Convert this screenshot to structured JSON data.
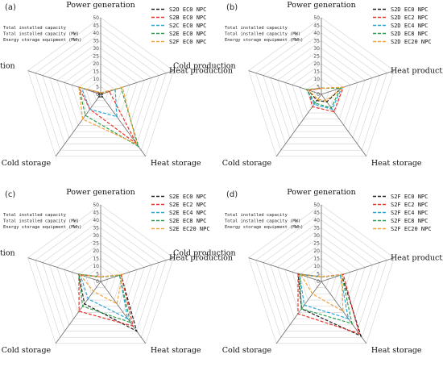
{
  "chart_data": [
    {
      "type": "radar",
      "panel": "(a)",
      "axes": [
        "Power generation",
        "Heat production",
        "Heat storage",
        "Cold storage",
        "Cold production"
      ],
      "rlim": [
        0,
        50
      ],
      "ticks": [
        0,
        5,
        10,
        15,
        20,
        25,
        30,
        35,
        40,
        45,
        50
      ],
      "notes": [
        "Total installed capacity",
        "Total installed capacity (MW)",
        "Energy storage equipment (MWh)"
      ],
      "grid": true,
      "legend_position": "top-right",
      "series": [
        {
          "name": "S2O EC0 NPC",
          "color": "#222222",
          "values": [
            1,
            1,
            2,
            2,
            1
          ]
        },
        {
          "name": "S2B EC0 NPC",
          "color": "#e8332a",
          "values": [
            1,
            6,
            40,
            12,
            15
          ]
        },
        {
          "name": "S2C EC0 NPC",
          "color": "#2aa6d6",
          "values": [
            1,
            10,
            18,
            12,
            13
          ]
        },
        {
          "name": "S2E EC0 NPC",
          "color": "#2e9e4f",
          "values": [
            1,
            14,
            42,
            17,
            15
          ]
        },
        {
          "name": "S2F EC0 NPC",
          "color": "#f2a33a",
          "values": [
            1,
            15,
            40,
            20,
            15
          ]
        }
      ]
    },
    {
      "type": "radar",
      "panel": "(b)",
      "axes": [
        "Power generation",
        "Heat production",
        "Heat storage",
        "Cold storage",
        "Cold production"
      ],
      "rlim": [
        0,
        50
      ],
      "ticks": [
        0,
        5,
        10,
        15,
        20,
        25,
        30,
        35,
        40,
        45,
        50
      ],
      "notes": [
        "Total installed capacity",
        "Total installed capacity (MW)",
        "Energy storage equipment (MWh)"
      ],
      "grid": true,
      "legend_position": "top-right",
      "series": [
        {
          "name": "S2D EC0 NPC",
          "color": "#222222",
          "values": [
            4,
            14,
            6,
            5,
            9
          ]
        },
        {
          "name": "S2D EC2 NPC",
          "color": "#e8332a",
          "values": [
            4,
            15,
            14,
            10,
            9
          ]
        },
        {
          "name": "S2D EC4 NPC",
          "color": "#2aa6d6",
          "values": [
            4,
            14,
            12,
            8,
            10
          ]
        },
        {
          "name": "S2D EC8 NPC",
          "color": "#2e9e4f",
          "values": [
            4,
            13,
            11,
            7,
            10
          ]
        },
        {
          "name": "S2D EC20 NPC",
          "color": "#f2a33a",
          "values": [
            4,
            15,
            5,
            4,
            9
          ]
        }
      ]
    },
    {
      "type": "radar",
      "panel": "(c)",
      "axes": [
        "Power generation",
        "Heat production",
        "Heat storage",
        "Cold storage",
        "Cold production"
      ],
      "rlim": [
        0,
        50
      ],
      "ticks": [
        0,
        5,
        10,
        15,
        20,
        25,
        30,
        35,
        40,
        45,
        50
      ],
      "notes": [
        "Total installed capacity",
        "Total installed capacity (MW)",
        "Energy storage equipment (MWh)"
      ],
      "grid": true,
      "legend_position": "top-right",
      "series": [
        {
          "name": "S2E EC0 NPC",
          "color": "#222222",
          "values": [
            3,
            14,
            40,
            18,
            15
          ]
        },
        {
          "name": "S2E EC2 NPC",
          "color": "#e8332a",
          "values": [
            3,
            14,
            36,
            24,
            15
          ]
        },
        {
          "name": "S2E EC4 NPC",
          "color": "#2aa6d6",
          "values": [
            3,
            13,
            30,
            14,
            14
          ]
        },
        {
          "name": "S2E EC8 NPC",
          "color": "#2e9e4f",
          "values": [
            3,
            13,
            33,
            20,
            15
          ]
        },
        {
          "name": "S2E EC20 NPC",
          "color": "#f2a33a",
          "values": [
            3,
            15,
            18,
            8,
            14
          ]
        }
      ]
    },
    {
      "type": "radar",
      "panel": "(d)",
      "axes": [
        "Power generation",
        "Heat production",
        "Heat storage",
        "Cold storage",
        "Cold production"
      ],
      "rlim": [
        0,
        50
      ],
      "ticks": [
        0,
        5,
        10,
        15,
        20,
        25,
        30,
        35,
        40,
        45,
        50
      ],
      "notes": [
        "Total installed capacity",
        "Total installed capacity (MW)",
        "Energy storage equipment (MWh)"
      ],
      "grid": true,
      "legend_position": "top-right",
      "series": [
        {
          "name": "S2F EC0 NPC",
          "color": "#222222",
          "values": [
            3,
            14,
            44,
            22,
            16
          ]
        },
        {
          "name": "S2F EC2 NPC",
          "color": "#e8332a",
          "values": [
            3,
            15,
            42,
            26,
            16
          ]
        },
        {
          "name": "S2F EC4 NPC",
          "color": "#2aa6d6",
          "values": [
            3,
            13,
            30,
            19,
            15
          ]
        },
        {
          "name": "S2F EC8 NPC",
          "color": "#2e9e4f",
          "values": [
            3,
            14,
            34,
            22,
            15
          ]
        },
        {
          "name": "S2F EC20 NPC",
          "color": "#f2a33a",
          "values": [
            3,
            14,
            24,
            10,
            14
          ]
        }
      ]
    }
  ]
}
